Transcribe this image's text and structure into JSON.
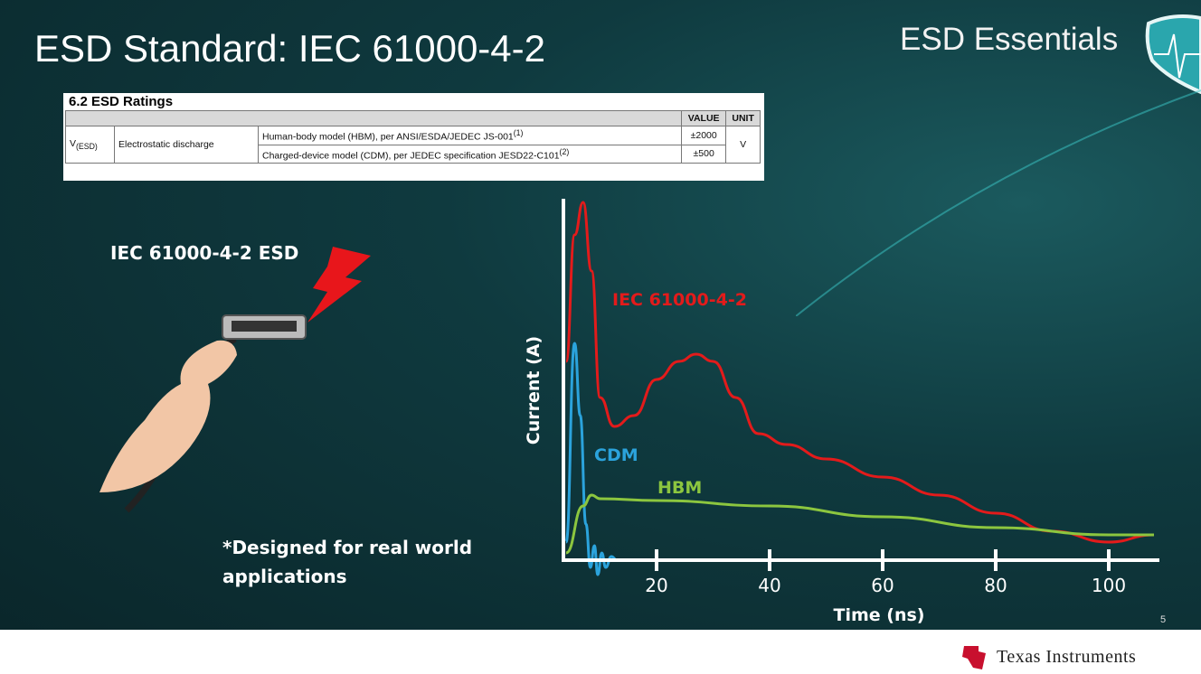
{
  "slide": {
    "title": "ESD Standard: IEC 61000-4-2",
    "brand": "ESD Essentials",
    "page_number": "5",
    "footer_logo_text": "Texas Instruments",
    "left_heading": "IEC 61000-4-2 ESD",
    "note": "*Designed for real world applications"
  },
  "ratings_table": {
    "caption": "6.2  ESD Ratings",
    "headers": [
      "",
      "",
      "",
      "VALUE",
      "UNIT"
    ],
    "symbol": "V",
    "symbol_sub": "(ESD)",
    "parameter": "Electrostatic discharge",
    "rows": [
      {
        "condition": "Human-body model (HBM), per ANSI/ESDA/JEDEC JS-001",
        "footnote": "(1)",
        "value": "±2000"
      },
      {
        "condition": "Charged-device model (CDM), per JEDEC specification JESD22-C101",
        "footnote": "(2)",
        "value": "±500"
      }
    ],
    "unit": "V"
  },
  "chart_data": {
    "type": "line",
    "xlabel": "Time (ns)",
    "ylabel": "Current (A)",
    "xticks": [
      20,
      40,
      60,
      80,
      100
    ],
    "xlim": [
      3.5,
      108.6
    ],
    "ylim": [
      0,
      1
    ],
    "grid": false,
    "series": [
      {
        "name": "IEC 61000-4-2",
        "color": "#e31b1b",
        "x": [
          4,
          5.5,
          7,
          8.5,
          10,
          12.5,
          16,
          20,
          24,
          27,
          30,
          34,
          38,
          43,
          50,
          60,
          70,
          80,
          90,
          100,
          108
        ],
        "y": [
          0.55,
          0.9,
          0.99,
          0.8,
          0.45,
          0.37,
          0.4,
          0.5,
          0.55,
          0.57,
          0.55,
          0.45,
          0.35,
          0.32,
          0.28,
          0.23,
          0.18,
          0.13,
          0.08,
          0.05,
          0.07
        ]
      },
      {
        "name": "CDM",
        "color": "#2ba3dc",
        "x": [
          4,
          5.5,
          6.5,
          7.5,
          8.3,
          9,
          9.6,
          10.3,
          11,
          12,
          13
        ],
        "y": [
          0.05,
          0.6,
          0.4,
          0.1,
          -0.02,
          0.04,
          -0.04,
          0.02,
          -0.02,
          0.01,
          0
        ]
      },
      {
        "name": "HBM",
        "color": "#8cc63f",
        "x": [
          4,
          7,
          8.5,
          10,
          20,
          40,
          60,
          80,
          100,
          108
        ],
        "y": [
          0.02,
          0.15,
          0.18,
          0.17,
          0.165,
          0.15,
          0.12,
          0.09,
          0.07,
          0.07
        ]
      }
    ]
  },
  "colors": {
    "accent_red": "#e31b1b",
    "cdm_blue": "#2ba3dc",
    "hbm_green": "#8cc63f",
    "background": "#0f3a3f"
  }
}
